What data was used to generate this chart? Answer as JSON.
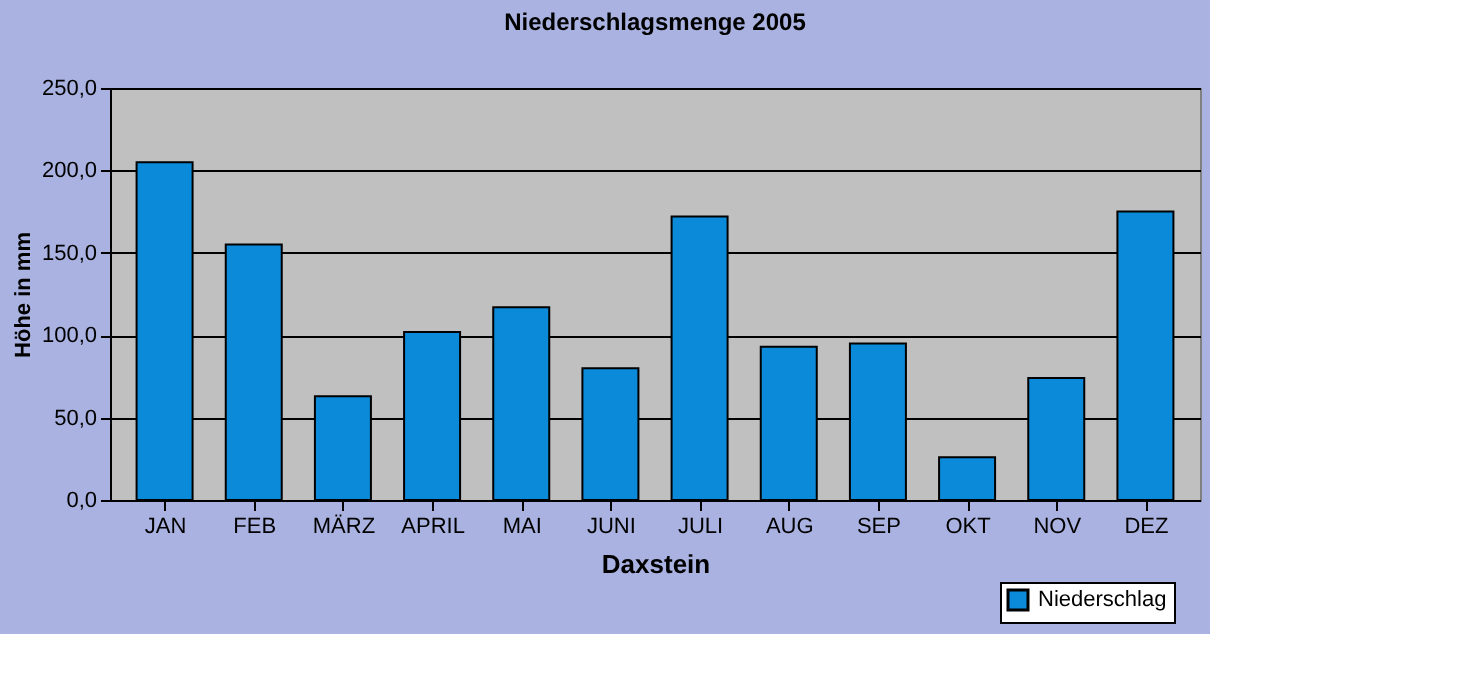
{
  "chart_data": {
    "type": "bar",
    "title": "Niederschlagsmenge  2005",
    "xlabel": "Daxstein",
    "ylabel": "Höhe in mm",
    "categories": [
      "JAN",
      "FEB",
      "MÄRZ",
      "APRIL",
      "MAI",
      "JUNI",
      "JULI",
      "AUG",
      "SEP",
      "OKT",
      "NOV",
      "DEZ"
    ],
    "series": [
      {
        "name": "Niederschlag",
        "color": "#0a8ad8",
        "values": [
          205,
          155,
          63,
          102,
          117,
          80,
          172,
          93,
          95,
          26,
          74,
          175
        ]
      }
    ],
    "ylim": [
      0,
      250
    ],
    "yticks": [
      {
        "value": 0,
        "label": "0,0"
      },
      {
        "value": 50,
        "label": "50,0"
      },
      {
        "value": 100,
        "label": "100,0"
      },
      {
        "value": 150,
        "label": "150,0"
      },
      {
        "value": 200,
        "label": "200,0"
      },
      {
        "value": 250,
        "label": "250,0"
      }
    ],
    "grid": "y",
    "legend": "bottom right"
  }
}
